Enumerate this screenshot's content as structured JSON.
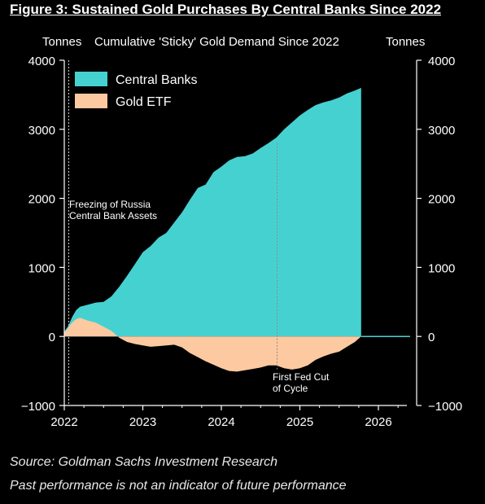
{
  "figure_title": "Figure 3: Sustained Gold Purchases By Central Banks Since 2022",
  "source": "Source: Goldman Sachs Investment Research",
  "disclaimer": "Past performance is not an indicator of future performance",
  "colors": {
    "central_banks": "#46d1d1",
    "gold_etf": "#fdc9a0",
    "background": "#000000",
    "axis": "#ffffff"
  },
  "chart_data": {
    "type": "area",
    "title": "Cumulative 'Sticky' Gold Demand Since 2022",
    "ylabel_left": "Tonnes",
    "ylabel_right": "Tonnes",
    "ylim": [
      -1000,
      4000
    ],
    "xlim": [
      2022,
      2026.35
    ],
    "x_ticks": [
      2022,
      2023,
      2024,
      2025,
      2026
    ],
    "y_ticks": [
      -1000,
      0,
      1000,
      2000,
      3000,
      4000
    ],
    "legend": {
      "placement": "top-left",
      "entries": [
        "Central Banks",
        "Gold ETF"
      ]
    },
    "grid": false,
    "annotations": [
      {
        "text_lines": [
          "Freezing of Russia",
          "Central Bank Assets"
        ],
        "x": 2022.15
      },
      {
        "text_lines": [
          "First Fed Cut",
          "of Cycle"
        ],
        "x": 2024.7
      }
    ],
    "series": [
      {
        "name": "Central Banks",
        "x": [
          2022.0,
          2022.05,
          2022.1,
          2022.15,
          2022.2,
          2022.3,
          2022.4,
          2022.5,
          2022.6,
          2022.7,
          2022.8,
          2022.9,
          2023.0,
          2023.1,
          2023.2,
          2023.3,
          2023.4,
          2023.5,
          2023.6,
          2023.7,
          2023.8,
          2023.9,
          2024.0,
          2024.1,
          2024.2,
          2024.3,
          2024.4,
          2024.5,
          2024.6,
          2024.7,
          2024.8,
          2024.9,
          2025.0,
          2025.1,
          2025.2,
          2025.3,
          2025.4,
          2025.5,
          2025.6,
          2025.7,
          2025.78
        ],
        "values": [
          70,
          150,
          280,
          380,
          430,
          460,
          490,
          500,
          580,
          720,
          880,
          1050,
          1220,
          1310,
          1430,
          1500,
          1650,
          1800,
          1980,
          2150,
          2200,
          2380,
          2460,
          2550,
          2600,
          2610,
          2650,
          2730,
          2800,
          2880,
          3000,
          3100,
          3200,
          3280,
          3350,
          3390,
          3420,
          3460,
          3520,
          3560,
          3600
        ]
      },
      {
        "name": "Gold ETF",
        "x": [
          2022.0,
          2022.05,
          2022.1,
          2022.15,
          2022.2,
          2022.3,
          2022.4,
          2022.5,
          2022.6,
          2022.7,
          2022.8,
          2022.9,
          2023.0,
          2023.1,
          2023.2,
          2023.3,
          2023.4,
          2023.5,
          2023.6,
          2023.7,
          2023.8,
          2023.9,
          2024.0,
          2024.1,
          2024.2,
          2024.3,
          2024.4,
          2024.5,
          2024.6,
          2024.7,
          2024.8,
          2024.9,
          2025.0,
          2025.1,
          2025.2,
          2025.3,
          2025.4,
          2025.5,
          2025.6,
          2025.7,
          2025.78
        ],
        "values": [
          50,
          130,
          200,
          250,
          270,
          230,
          200,
          140,
          80,
          -20,
          -80,
          -110,
          -130,
          -150,
          -140,
          -130,
          -120,
          -160,
          -240,
          -300,
          -360,
          -410,
          -460,
          -500,
          -510,
          -490,
          -470,
          -450,
          -420,
          -420,
          -460,
          -480,
          -460,
          -420,
          -340,
          -290,
          -250,
          -220,
          -150,
          -80,
          0
        ]
      }
    ]
  }
}
